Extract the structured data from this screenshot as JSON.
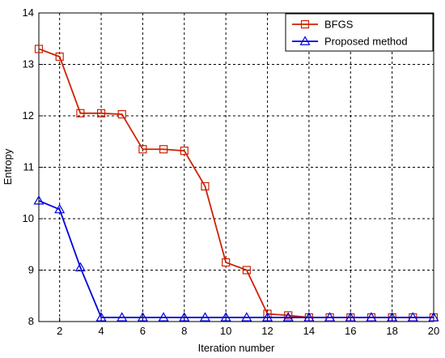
{
  "chart_data": {
    "type": "line",
    "xlabel": "Iteration number",
    "ylabel": "Entropy",
    "xlim": [
      1,
      20
    ],
    "ylim": [
      8,
      14
    ],
    "xticks": [
      2,
      4,
      6,
      8,
      10,
      12,
      14,
      16,
      18,
      20
    ],
    "yticks": [
      8,
      9,
      10,
      11,
      12,
      13,
      14
    ],
    "grid": true,
    "legend_position": "top-right",
    "x": [
      1,
      2,
      3,
      4,
      5,
      6,
      7,
      8,
      9,
      10,
      11,
      12,
      13,
      14,
      15,
      16,
      17,
      18,
      19,
      20
    ],
    "series": [
      {
        "name": "BFGS",
        "color": "#cc2200",
        "marker": "square",
        "values": [
          13.3,
          13.15,
          12.05,
          12.05,
          12.03,
          11.35,
          11.35,
          11.32,
          10.63,
          9.15,
          9.0,
          8.15,
          8.12,
          8.08,
          8.08,
          8.08,
          8.08,
          8.08,
          8.08,
          8.08
        ]
      },
      {
        "name": "Proposed method",
        "color": "#0000dd",
        "marker": "triangle",
        "values": [
          10.35,
          10.18,
          9.05,
          8.08,
          8.08,
          8.08,
          8.08,
          8.08,
          8.08,
          8.08,
          8.08,
          8.08,
          8.08,
          8.08,
          8.08,
          8.08,
          8.08,
          8.08,
          8.08,
          8.08
        ]
      }
    ]
  }
}
